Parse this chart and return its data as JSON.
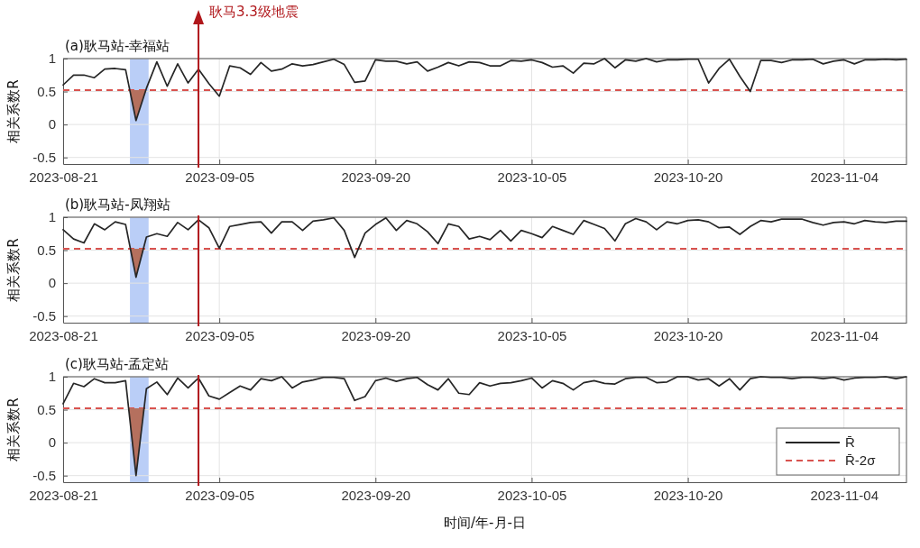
{
  "chart_data": [
    {
      "type": "line",
      "title": "(a)耿马站-幸福站",
      "ylabel": "相关系数R",
      "xlim": [
        "2023-08-21",
        "2023-11-10"
      ],
      "xticks": [
        "2023-08-21",
        "2023-09-05",
        "2023-09-20",
        "2023-10-05",
        "2023-10-20",
        "2023-11-04"
      ],
      "ylim": [
        -0.6,
        1
      ],
      "yticks": [
        -0.5,
        0,
        0.5,
        1
      ],
      "grid": true,
      "marker": "none",
      "x": [
        "2023-08-21",
        "2023-08-22",
        "2023-08-23",
        "2023-08-24",
        "2023-08-25",
        "2023-08-26",
        "2023-08-27",
        "2023-08-28",
        "2023-08-29",
        "2023-08-30",
        "2023-08-31",
        "2023-09-01",
        "2023-09-02",
        "2023-09-03",
        "2023-09-04",
        "2023-09-05",
        "2023-09-06",
        "2023-09-07",
        "2023-09-08",
        "2023-09-09",
        "2023-09-10",
        "2023-09-11",
        "2023-09-12",
        "2023-09-13",
        "2023-09-14",
        "2023-09-15",
        "2023-09-16",
        "2023-09-17",
        "2023-09-18",
        "2023-09-19",
        "2023-09-20",
        "2023-09-21",
        "2023-09-22",
        "2023-09-23",
        "2023-09-24",
        "2023-09-25",
        "2023-09-26",
        "2023-09-27",
        "2023-09-28",
        "2023-09-29",
        "2023-09-30",
        "2023-10-01",
        "2023-10-02",
        "2023-10-03",
        "2023-10-04",
        "2023-10-05",
        "2023-10-06",
        "2023-10-07",
        "2023-10-08",
        "2023-10-09",
        "2023-10-10",
        "2023-10-11",
        "2023-10-12",
        "2023-10-13",
        "2023-10-14",
        "2023-10-15",
        "2023-10-16",
        "2023-10-17",
        "2023-10-18",
        "2023-10-19",
        "2023-10-20",
        "2023-10-21",
        "2023-10-22",
        "2023-10-23",
        "2023-10-24",
        "2023-10-25",
        "2023-10-26",
        "2023-10-27",
        "2023-10-28",
        "2023-10-29",
        "2023-10-30",
        "2023-10-31",
        "2023-11-01",
        "2023-11-02",
        "2023-11-03",
        "2023-11-04",
        "2023-11-05",
        "2023-11-06",
        "2023-11-07",
        "2023-11-08",
        "2023-11-09",
        "2023-11-10"
      ],
      "series": [
        {
          "type": "line",
          "color": "#262626",
          "line_style": "solid",
          "values": [
            0.6,
            0.75,
            0.75,
            0.71,
            0.84,
            0.85,
            0.83,
            0.06,
            0.55,
            0.95,
            0.58,
            0.92,
            0.63,
            0.84,
            0.62,
            0.43,
            0.89,
            0.86,
            0.76,
            0.94,
            0.81,
            0.84,
            0.92,
            0.89,
            0.91,
            0.95,
            0.99,
            0.91,
            0.64,
            0.66,
            0.98,
            0.96,
            0.96,
            0.92,
            0.95,
            0.81,
            0.87,
            0.94,
            0.89,
            0.95,
            0.94,
            0.89,
            0.89,
            0.97,
            0.96,
            0.98,
            0.94,
            0.87,
            0.89,
            0.78,
            0.93,
            0.92,
            1.0,
            0.86,
            0.98,
            0.96,
            1.0,
            0.95,
            0.98,
            0.98,
            0.99,
            0.99,
            0.63,
            0.85,
            0.99,
            0.73,
            0.5,
            0.97,
            0.97,
            0.94,
            0.98,
            0.98,
            0.99,
            0.92,
            0.96,
            0.98,
            0.92,
            0.98,
            0.98,
            0.99,
            0.98,
            0.99
          ]
        },
        {
          "type": "area",
          "color": "#b5705e",
          "x": [
            "2023-08-27T10:00",
            "2023-08-28",
            "2023-08-28T22:00"
          ],
          "values": [
            0.52,
            0.06,
            0.52
          ]
        }
      ],
      "bands": [
        {
          "axis": "x",
          "from": "2023-08-27T10:00",
          "to": "2023-08-29T05:00",
          "color": "#a9c2f5"
        }
      ],
      "ref_lines": [
        {
          "axis": "y",
          "value": 0.52,
          "color": "#d9534f",
          "line_style": "dashed"
        },
        {
          "axis": "x",
          "value": "2023-09-03",
          "color": "#b0171b",
          "line_style": "solid",
          "label": "耿马3.3级地震"
        }
      ]
    },
    {
      "type": "line",
      "title": "(b)耿马站-凤翔站",
      "ylabel": "相关系数R",
      "xlim": [
        "2023-08-21",
        "2023-11-10"
      ],
      "xticks": [
        "2023-08-21",
        "2023-09-05",
        "2023-09-20",
        "2023-10-05",
        "2023-10-20",
        "2023-11-04"
      ],
      "ylim": [
        -0.6,
        1
      ],
      "yticks": [
        -0.5,
        0,
        0.5,
        1
      ],
      "grid": true,
      "marker": "none",
      "x": [
        "2023-08-21",
        "2023-08-22",
        "2023-08-23",
        "2023-08-24",
        "2023-08-25",
        "2023-08-26",
        "2023-08-27",
        "2023-08-28",
        "2023-08-29",
        "2023-08-30",
        "2023-08-31",
        "2023-09-01",
        "2023-09-02",
        "2023-09-03",
        "2023-09-04",
        "2023-09-05",
        "2023-09-06",
        "2023-09-07",
        "2023-09-08",
        "2023-09-09",
        "2023-09-10",
        "2023-09-11",
        "2023-09-12",
        "2023-09-13",
        "2023-09-14",
        "2023-09-15",
        "2023-09-16",
        "2023-09-17",
        "2023-09-18",
        "2023-09-19",
        "2023-09-20",
        "2023-09-21",
        "2023-09-22",
        "2023-09-23",
        "2023-09-24",
        "2023-09-25",
        "2023-09-26",
        "2023-09-27",
        "2023-09-28",
        "2023-09-29",
        "2023-09-30",
        "2023-10-01",
        "2023-10-02",
        "2023-10-03",
        "2023-10-04",
        "2023-10-05",
        "2023-10-06",
        "2023-10-07",
        "2023-10-08",
        "2023-10-09",
        "2023-10-10",
        "2023-10-11",
        "2023-10-12",
        "2023-10-13",
        "2023-10-14",
        "2023-10-15",
        "2023-10-16",
        "2023-10-17",
        "2023-10-18",
        "2023-10-19",
        "2023-10-20",
        "2023-10-21",
        "2023-10-22",
        "2023-10-23",
        "2023-10-24",
        "2023-10-25",
        "2023-10-26",
        "2023-10-27",
        "2023-10-28",
        "2023-10-29",
        "2023-10-30",
        "2023-10-31",
        "2023-11-01",
        "2023-11-02",
        "2023-11-03",
        "2023-11-04",
        "2023-11-05",
        "2023-11-06",
        "2023-11-07",
        "2023-11-08",
        "2023-11-09",
        "2023-11-10"
      ],
      "series": [
        {
          "type": "line",
          "color": "#262626",
          "line_style": "solid",
          "values": [
            0.81,
            0.67,
            0.61,
            0.9,
            0.81,
            0.93,
            0.89,
            0.09,
            0.7,
            0.75,
            0.71,
            0.92,
            0.81,
            0.96,
            0.84,
            0.53,
            0.86,
            0.89,
            0.92,
            0.93,
            0.76,
            0.93,
            0.93,
            0.8,
            0.94,
            0.96,
            0.99,
            0.8,
            0.39,
            0.76,
            0.89,
            0.99,
            0.8,
            0.95,
            0.9,
            0.78,
            0.6,
            0.9,
            0.86,
            0.67,
            0.71,
            0.66,
            0.8,
            0.64,
            0.8,
            0.75,
            0.69,
            0.86,
            0.8,
            0.74,
            0.95,
            0.89,
            0.83,
            0.64,
            0.9,
            0.98,
            0.93,
            0.81,
            0.93,
            0.9,
            0.95,
            0.96,
            0.93,
            0.84,
            0.85,
            0.74,
            0.86,
            0.95,
            0.93,
            0.97,
            0.97,
            0.97,
            0.92,
            0.88,
            0.92,
            0.93,
            0.9,
            0.95,
            0.93,
            0.92,
            0.94,
            0.94
          ]
        },
        {
          "type": "area",
          "color": "#b5705e",
          "x": [
            "2023-08-27T11:00",
            "2023-08-28",
            "2023-08-28T17:00"
          ],
          "values": [
            0.52,
            0.09,
            0.52
          ]
        }
      ],
      "bands": [
        {
          "axis": "x",
          "from": "2023-08-27T10:00",
          "to": "2023-08-29T05:00",
          "color": "#a9c2f5"
        }
      ],
      "ref_lines": [
        {
          "axis": "y",
          "value": 0.52,
          "color": "#d9534f",
          "line_style": "dashed"
        },
        {
          "axis": "x",
          "value": "2023-09-03",
          "color": "#b0171b",
          "line_style": "solid"
        }
      ]
    },
    {
      "type": "line",
      "title": "(c)耿马站-孟定站",
      "ylabel": "相关系数R",
      "xlabel": "时间/年-月-日",
      "xlim": [
        "2023-08-21",
        "2023-11-10"
      ],
      "xticks": [
        "2023-08-21",
        "2023-09-05",
        "2023-09-20",
        "2023-10-05",
        "2023-10-20",
        "2023-11-04"
      ],
      "ylim": [
        -0.6,
        1
      ],
      "yticks": [
        -0.5,
        0,
        0.5,
        1
      ],
      "grid": true,
      "marker": "none",
      "legend": "bottom right",
      "x": [
        "2023-08-21",
        "2023-08-22",
        "2023-08-23",
        "2023-08-24",
        "2023-08-25",
        "2023-08-26",
        "2023-08-27",
        "2023-08-28",
        "2023-08-29",
        "2023-08-30",
        "2023-08-31",
        "2023-09-01",
        "2023-09-02",
        "2023-09-03",
        "2023-09-04",
        "2023-09-05",
        "2023-09-06",
        "2023-09-07",
        "2023-09-08",
        "2023-09-09",
        "2023-09-10",
        "2023-09-11",
        "2023-09-12",
        "2023-09-13",
        "2023-09-14",
        "2023-09-15",
        "2023-09-16",
        "2023-09-17",
        "2023-09-18",
        "2023-09-19",
        "2023-09-20",
        "2023-09-21",
        "2023-09-22",
        "2023-09-23",
        "2023-09-24",
        "2023-09-25",
        "2023-09-26",
        "2023-09-27",
        "2023-09-28",
        "2023-09-29",
        "2023-09-30",
        "2023-10-01",
        "2023-10-02",
        "2023-10-03",
        "2023-10-04",
        "2023-10-05",
        "2023-10-06",
        "2023-10-07",
        "2023-10-08",
        "2023-10-09",
        "2023-10-10",
        "2023-10-11",
        "2023-10-12",
        "2023-10-13",
        "2023-10-14",
        "2023-10-15",
        "2023-10-16",
        "2023-10-17",
        "2023-10-18",
        "2023-10-19",
        "2023-10-20",
        "2023-10-21",
        "2023-10-22",
        "2023-10-23",
        "2023-10-24",
        "2023-10-25",
        "2023-10-26",
        "2023-10-27",
        "2023-10-28",
        "2023-10-29",
        "2023-10-30",
        "2023-10-31",
        "2023-11-01",
        "2023-11-02",
        "2023-11-03",
        "2023-11-04",
        "2023-11-05",
        "2023-11-06",
        "2023-11-07",
        "2023-11-08",
        "2023-11-09",
        "2023-11-10"
      ],
      "series": [
        {
          "type": "line",
          "name": "R̄",
          "color": "#262626",
          "line_style": "solid",
          "values": [
            0.59,
            0.9,
            0.85,
            0.97,
            0.91,
            0.91,
            0.94,
            -0.5,
            0.82,
            0.92,
            0.73,
            0.98,
            0.83,
            0.98,
            0.71,
            0.66,
            0.76,
            0.86,
            0.8,
            0.97,
            0.94,
            1.0,
            0.83,
            0.92,
            0.95,
            0.99,
            0.99,
            0.97,
            0.64,
            0.7,
            0.94,
            0.98,
            0.93,
            0.97,
            0.99,
            0.88,
            0.8,
            0.97,
            0.75,
            0.73,
            0.91,
            0.86,
            0.9,
            0.91,
            0.94,
            0.98,
            0.83,
            0.94,
            0.9,
            0.8,
            0.91,
            0.94,
            0.9,
            0.89,
            0.97,
            0.99,
            0.99,
            0.91,
            0.92,
            1.0,
            1.0,
            0.95,
            0.97,
            0.86,
            0.97,
            0.8,
            0.97,
            1.0,
            0.99,
            0.99,
            0.97,
            0.99,
            0.99,
            0.97,
            0.99,
            0.95,
            0.98,
            0.99,
            0.99,
            1.0,
            0.97,
            1.0
          ]
        },
        {
          "type": "area",
          "color": "#b5705e",
          "x": [
            "2023-08-27T07:00",
            "2023-08-28",
            "2023-08-28T18:00"
          ],
          "values": [
            0.52,
            -0.5,
            0.52
          ]
        }
      ],
      "bands": [
        {
          "axis": "x",
          "from": "2023-08-27T10:00",
          "to": "2023-08-29T05:00",
          "color": "#a9c2f5"
        }
      ],
      "ref_lines": [
        {
          "axis": "y",
          "value": 0.52,
          "color": "#d9534f",
          "line_style": "dashed",
          "label": "R̄-2σ"
        },
        {
          "axis": "x",
          "value": "2023-09-03",
          "color": "#b0171b",
          "line_style": "solid"
        }
      ]
    }
  ]
}
